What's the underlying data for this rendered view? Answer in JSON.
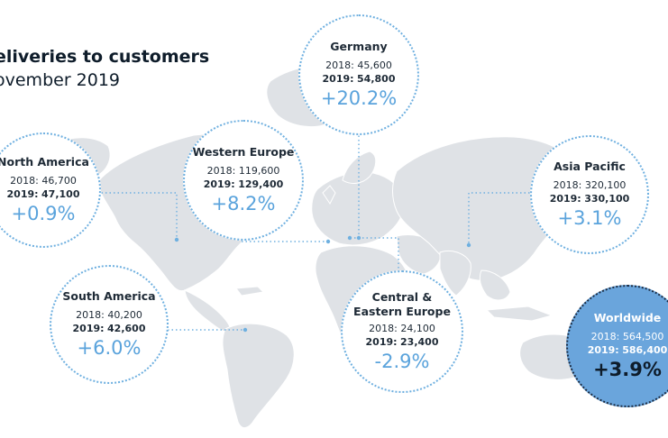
{
  "title": {
    "line1": "eliveries to customers",
    "line2": "ovember 2019"
  },
  "colors": {
    "accent": "#5aa3dc",
    "map": "#dfe2e6",
    "worldwide_fill": "#6aa5dc",
    "connector": "#6fb0e0"
  },
  "regions": {
    "north_america": {
      "name": "North America",
      "v2018": "2018: 46,700",
      "label2019": "2019:",
      "v2019": "47,100",
      "change": "+0.9%"
    },
    "western_europe": {
      "name": "Western Europe",
      "v2018": "2018: 119,600",
      "label2019": "2019:",
      "v2019": "129,400",
      "change": "+8.2%"
    },
    "germany": {
      "name": "Germany",
      "v2018": "2018: 45,600",
      "label2019": "2019:",
      "v2019": "54,800",
      "change": "+20.2%"
    },
    "asia_pacific": {
      "name": "Asia Pacific",
      "v2018": "2018: 320,100",
      "label2019": "2019:",
      "v2019": "330,100",
      "change": "+3.1%"
    },
    "south_america": {
      "name": "South America",
      "v2018": "2018: 40,200",
      "label2019": "2019:",
      "v2019": "42,600",
      "change": "+6.0%"
    },
    "central_eastern_europe": {
      "name_line1": "Central &",
      "name_line2": "Eastern Europe",
      "v2018": "2018: 24,100",
      "label2019": "2019:",
      "v2019": "23,400",
      "change": "-2.9%"
    },
    "worldwide": {
      "name": "Worldwide",
      "v2018": "2018: 564,500",
      "label2019": "2019:",
      "v2019": "586,400",
      "change": "+3.9%"
    }
  }
}
